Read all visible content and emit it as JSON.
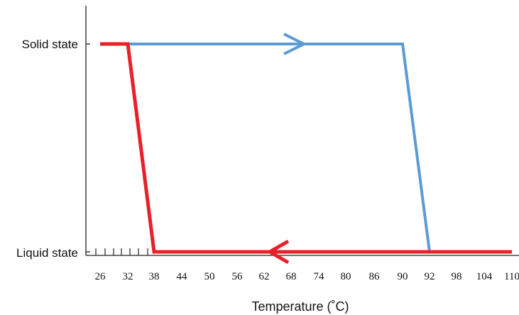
{
  "chart_data": {
    "type": "line",
    "xlabel": "Temperature (˚C)",
    "ylabel": "",
    "x_ticks": [
      "26",
      "32",
      "38",
      "44",
      "50",
      "56",
      "62",
      "68",
      "74",
      "80",
      "86",
      "90",
      "92",
      "98",
      "104",
      "110"
    ],
    "y_categories": [
      "Liquid state",
      "Solid state"
    ],
    "series": [
      {
        "color": "#5b9bd5",
        "direction": "heating",
        "arrow": "right",
        "points": [
          {
            "x": 26,
            "y": "Solid state"
          },
          {
            "x": 90,
            "y": "Solid state"
          },
          {
            "x": 92,
            "y": "Liquid state"
          },
          {
            "x": 110,
            "y": "Liquid state"
          }
        ]
      },
      {
        "color": "#e8202a",
        "direction": "cooling",
        "arrow": "left",
        "points": [
          {
            "x": 26,
            "y": "Solid state"
          },
          {
            "x": 32,
            "y": "Solid state"
          },
          {
            "x": 38,
            "y": "Liquid state"
          },
          {
            "x": 110,
            "y": "Liquid state"
          }
        ]
      }
    ],
    "grid": false,
    "legend": "none"
  }
}
